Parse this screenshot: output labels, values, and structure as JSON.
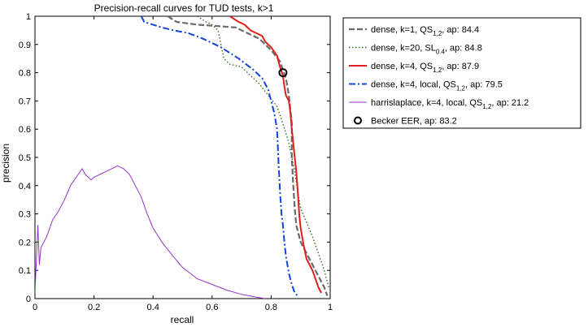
{
  "chart_data": {
    "type": "line",
    "title": "Precision-recall curves for TUD tests, k>1",
    "xlabel": "recall",
    "ylabel": "precision",
    "xlim": [
      0,
      1
    ],
    "ylim": [
      0,
      1
    ],
    "xticks": [
      "0",
      "0.2",
      "0.4",
      "0.6",
      "0.8",
      "1"
    ],
    "yticks": [
      "0",
      "0.1",
      "0.2",
      "0.3",
      "0.4",
      "0.5",
      "0.6",
      "0.7",
      "0.8",
      "0.9",
      "1"
    ],
    "grid": false,
    "legend_position": "outside-right",
    "series": [
      {
        "name": "dense, k=1, QS",
        "name_sub": "1,2",
        "name_suffix": ", ap: 84.4",
        "color": "#6b6b6b",
        "style": "dashed",
        "points": [
          [
            0.45,
            1.0
          ],
          [
            0.48,
            0.98
          ],
          [
            0.55,
            0.97
          ],
          [
            0.62,
            0.965
          ],
          [
            0.68,
            0.96
          ],
          [
            0.72,
            0.94
          ],
          [
            0.76,
            0.92
          ],
          [
            0.8,
            0.88
          ],
          [
            0.83,
            0.84
          ],
          [
            0.85,
            0.78
          ],
          [
            0.86,
            0.72
          ],
          [
            0.87,
            0.62
          ],
          [
            0.87,
            0.5
          ],
          [
            0.875,
            0.4
          ],
          [
            0.88,
            0.32
          ],
          [
            0.885,
            0.26
          ],
          [
            0.9,
            0.2
          ],
          [
            0.92,
            0.16
          ],
          [
            0.94,
            0.12
          ],
          [
            0.96,
            0.08
          ],
          [
            0.98,
            0.04
          ],
          [
            0.99,
            0.01
          ]
        ]
      },
      {
        "name": "dense, k=20, SL",
        "name_sub": "0.4",
        "name_suffix": ", ap: 84.8",
        "color": "#2e6b1a",
        "style": "dotted",
        "points": [
          [
            0.55,
            1.0
          ],
          [
            0.58,
            0.98
          ],
          [
            0.6,
            0.97
          ],
          [
            0.62,
            0.95
          ],
          [
            0.63,
            0.9
          ],
          [
            0.64,
            0.85
          ],
          [
            0.66,
            0.83
          ],
          [
            0.7,
            0.82
          ],
          [
            0.73,
            0.79
          ],
          [
            0.76,
            0.76
          ],
          [
            0.79,
            0.72
          ],
          [
            0.82,
            0.68
          ],
          [
            0.84,
            0.62
          ],
          [
            0.86,
            0.55
          ],
          [
            0.87,
            0.5
          ],
          [
            0.88,
            0.45
          ],
          [
            0.89,
            0.38
          ],
          [
            0.9,
            0.32
          ],
          [
            0.92,
            0.27
          ],
          [
            0.94,
            0.22
          ],
          [
            0.96,
            0.16
          ],
          [
            0.98,
            0.1
          ],
          [
            0.995,
            0.04
          ]
        ]
      },
      {
        "name": "dense, k=4, QS",
        "name_sub": "1,2",
        "name_suffix": ", ap: 87.9",
        "color": "#e0201b",
        "style": "solid",
        "points": [
          [
            0.66,
            1.0
          ],
          [
            0.69,
            0.98
          ],
          [
            0.71,
            0.97
          ],
          [
            0.73,
            0.95
          ],
          [
            0.75,
            0.94
          ],
          [
            0.77,
            0.93
          ],
          [
            0.78,
            0.91
          ],
          [
            0.8,
            0.89
          ],
          [
            0.82,
            0.86
          ],
          [
            0.83,
            0.82
          ],
          [
            0.84,
            0.79
          ],
          [
            0.845,
            0.75
          ],
          [
            0.85,
            0.72
          ],
          [
            0.86,
            0.7
          ],
          [
            0.865,
            0.66
          ],
          [
            0.87,
            0.6
          ],
          [
            0.875,
            0.55
          ],
          [
            0.88,
            0.5
          ],
          [
            0.885,
            0.45
          ],
          [
            0.89,
            0.38
          ],
          [
            0.895,
            0.3
          ],
          [
            0.9,
            0.25
          ],
          [
            0.91,
            0.19
          ],
          [
            0.92,
            0.14
          ],
          [
            0.94,
            0.1
          ],
          [
            0.95,
            0.07
          ],
          [
            0.96,
            0.04
          ],
          [
            0.97,
            0.02
          ]
        ]
      },
      {
        "name": "dense, k=4, local, QS",
        "name_sub": "1,2",
        "name_suffix": ", ap: 79.5",
        "color": "#1144dd",
        "style": "dashdot",
        "points": [
          [
            0.36,
            1.0
          ],
          [
            0.37,
            0.98
          ],
          [
            0.4,
            0.97
          ],
          [
            0.43,
            0.96
          ],
          [
            0.47,
            0.95
          ],
          [
            0.52,
            0.94
          ],
          [
            0.57,
            0.92
          ],
          [
            0.63,
            0.89
          ],
          [
            0.69,
            0.85
          ],
          [
            0.74,
            0.81
          ],
          [
            0.77,
            0.78
          ],
          [
            0.79,
            0.74
          ],
          [
            0.8,
            0.7
          ],
          [
            0.81,
            0.66
          ],
          [
            0.82,
            0.6
          ],
          [
            0.825,
            0.48
          ],
          [
            0.83,
            0.38
          ],
          [
            0.835,
            0.3
          ],
          [
            0.84,
            0.26
          ],
          [
            0.845,
            0.2
          ],
          [
            0.85,
            0.15
          ],
          [
            0.86,
            0.09
          ],
          [
            0.87,
            0.05
          ],
          [
            0.88,
            0.02
          ],
          [
            0.89,
            0.01
          ]
        ]
      },
      {
        "name": "harrislaplace, k=4, local, QS",
        "name_sub": "1,2",
        "name_suffix": ", ap: 21.2",
        "color": "#9932cc",
        "style": "solid",
        "points": [
          [
            0.0,
            0.02
          ],
          [
            0.01,
            0.26
          ],
          [
            0.015,
            0.12
          ],
          [
            0.02,
            0.18
          ],
          [
            0.03,
            0.2
          ],
          [
            0.04,
            0.22
          ],
          [
            0.05,
            0.25
          ],
          [
            0.06,
            0.28
          ],
          [
            0.08,
            0.31
          ],
          [
            0.1,
            0.35
          ],
          [
            0.12,
            0.4
          ],
          [
            0.14,
            0.43
          ],
          [
            0.16,
            0.46
          ],
          [
            0.17,
            0.44
          ],
          [
            0.19,
            0.42
          ],
          [
            0.2,
            0.43
          ],
          [
            0.22,
            0.44
          ],
          [
            0.24,
            0.45
          ],
          [
            0.26,
            0.46
          ],
          [
            0.28,
            0.47
          ],
          [
            0.3,
            0.46
          ],
          [
            0.32,
            0.44
          ],
          [
            0.34,
            0.4
          ],
          [
            0.36,
            0.36
          ],
          [
            0.38,
            0.3
          ],
          [
            0.4,
            0.25
          ],
          [
            0.43,
            0.2
          ],
          [
            0.46,
            0.16
          ],
          [
            0.5,
            0.11
          ],
          [
            0.55,
            0.07
          ],
          [
            0.6,
            0.05
          ],
          [
            0.65,
            0.03
          ],
          [
            0.7,
            0.015
          ],
          [
            0.75,
            0.005
          ],
          [
            0.78,
            0.0
          ]
        ]
      }
    ],
    "marker": {
      "name": "Becker EER, ap: 83.2",
      "x": 0.84,
      "y": 0.8,
      "shape": "circle"
    }
  }
}
